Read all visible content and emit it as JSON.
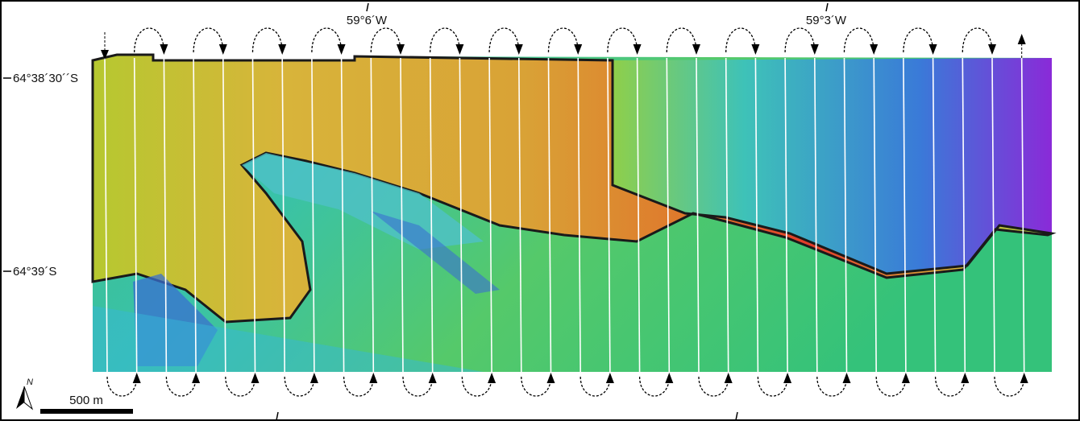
{
  "map": {
    "longitude_labels": [
      "59°6´W",
      "59°3´W"
    ],
    "latitude_labels": [
      "64°38´30´´S",
      "64°39´S"
    ],
    "north_label": "N",
    "scale_label": "500 m"
  }
}
